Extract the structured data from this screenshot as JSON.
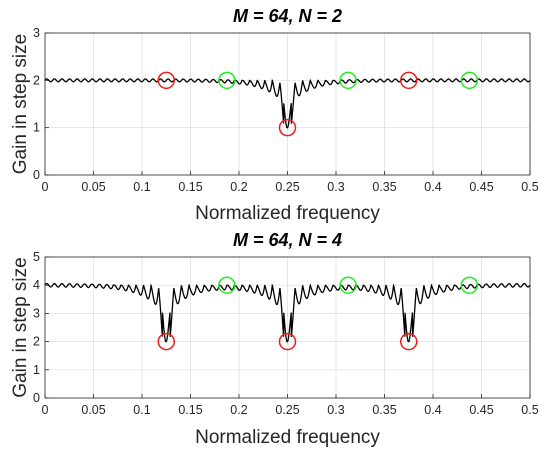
{
  "chart_data": [
    {
      "type": "line",
      "title": "M = 64, N = 2",
      "xlabel": "Normalized frequency",
      "ylabel": "Gain in step size",
      "xlim": [
        0,
        0.5
      ],
      "ylim": [
        0,
        3
      ],
      "xticks": [
        "0",
        "0.05",
        "0.1",
        "0.15",
        "0.2",
        "0.25",
        "0.3",
        "0.35",
        "0.4",
        "0.45",
        "0.5"
      ],
      "yticks": [
        "0",
        "1",
        "2",
        "3"
      ],
      "grid": true,
      "M": 64,
      "N": 2,
      "baseline": 2,
      "series": [
        {
          "color": "#000000",
          "dips": [
            {
              "x": 0.25,
              "depth": 1.0
            }
          ]
        }
      ],
      "markers": [
        {
          "x": 0.125,
          "y": 2,
          "color": "#ee1c1c"
        },
        {
          "x": 0.1875,
          "y": 2,
          "color": "#22ee22"
        },
        {
          "x": 0.25,
          "y": 1,
          "color": "#ee1c1c"
        },
        {
          "x": 0.3125,
          "y": 2,
          "color": "#22ee22"
        },
        {
          "x": 0.375,
          "y": 2,
          "color": "#ee1c1c"
        },
        {
          "x": 0.4375,
          "y": 2,
          "color": "#22ee22"
        }
      ]
    },
    {
      "type": "line",
      "title": "M = 64, N = 4",
      "xlabel": "Normalized frequency",
      "ylabel": "Gain in step size",
      "xlim": [
        0,
        0.5
      ],
      "ylim": [
        0,
        5
      ],
      "xticks": [
        "0",
        "0.05",
        "0.1",
        "0.15",
        "0.2",
        "0.25",
        "0.3",
        "0.35",
        "0.4",
        "0.45",
        "0.5"
      ],
      "yticks": [
        "0",
        "1",
        "2",
        "3",
        "4",
        "5"
      ],
      "grid": true,
      "M": 64,
      "N": 4,
      "baseline": 4,
      "series": [
        {
          "color": "#000000",
          "dips": [
            {
              "x": 0.125,
              "depth": 2.0
            },
            {
              "x": 0.25,
              "depth": 2.0
            },
            {
              "x": 0.375,
              "depth": 2.0
            }
          ]
        }
      ],
      "markers": [
        {
          "x": 0.125,
          "y": 2,
          "color": "#ee1c1c"
        },
        {
          "x": 0.1875,
          "y": 4,
          "color": "#22ee22"
        },
        {
          "x": 0.25,
          "y": 2,
          "color": "#ee1c1c"
        },
        {
          "x": 0.3125,
          "y": 4,
          "color": "#22ee22"
        },
        {
          "x": 0.375,
          "y": 2,
          "color": "#ee1c1c"
        },
        {
          "x": 0.4375,
          "y": 4,
          "color": "#22ee22"
        }
      ]
    }
  ]
}
